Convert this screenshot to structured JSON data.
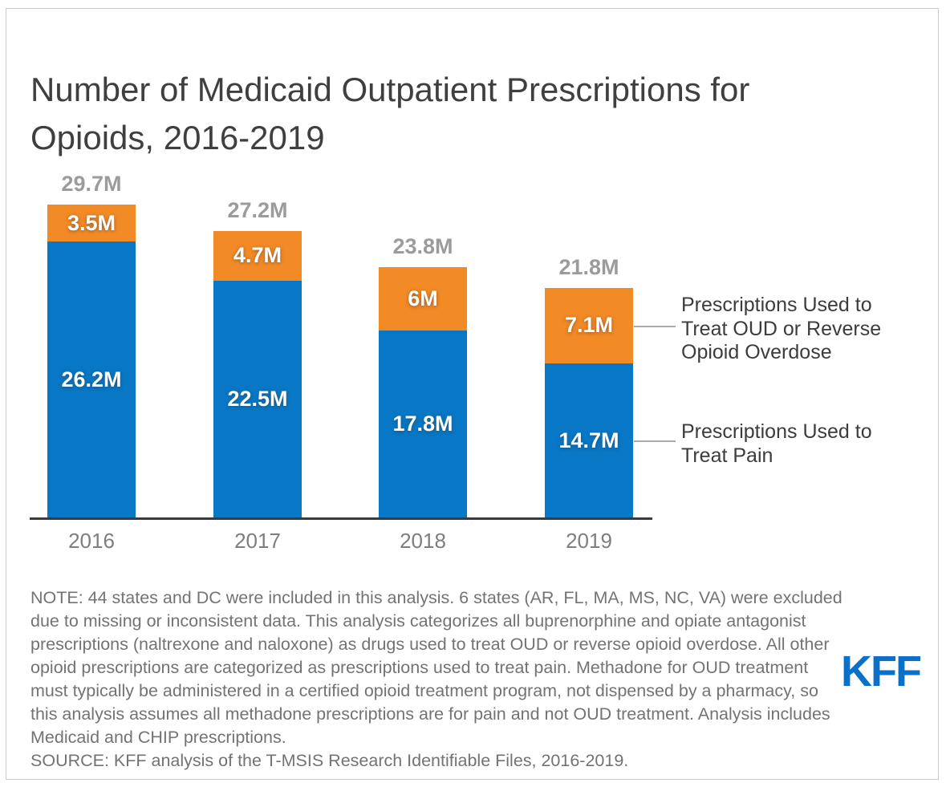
{
  "title": "Number of Medicaid Outpatient Prescriptions for Opioids, 2016-2019",
  "chart_data": {
    "type": "bar",
    "stacked": true,
    "categories": [
      "2016",
      "2017",
      "2018",
      "2019"
    ],
    "series": [
      {
        "name": "Prescriptions Used to Treat Pain",
        "color_key": "pain_blue",
        "values": [
          26.2,
          22.5,
          17.8,
          14.7
        ],
        "labels": [
          "26.2M",
          "22.5M",
          "17.8M",
          "14.7M"
        ]
      },
      {
        "name": "Prescriptions Used to Treat OUD or Reverse Opioid Overdose",
        "color_key": "oud_orange",
        "values": [
          3.5,
          4.7,
          6.0,
          7.1
        ],
        "labels": [
          "3.5M",
          "4.7M",
          "6M",
          "7.1M"
        ]
      }
    ],
    "totals": [
      29.7,
      27.2,
      23.8,
      21.8
    ],
    "total_labels": [
      "29.7M",
      "27.2M",
      "23.8M",
      "21.8M"
    ],
    "unit": "millions of prescriptions",
    "ylim": [
      0,
      30
    ],
    "grid": false,
    "legend_position": "right"
  },
  "legend": {
    "oud_label": "Prescriptions Used to Treat OUD or Reverse Opioid Overdose",
    "pain_label": "Prescriptions Used to Treat Pain"
  },
  "footer": {
    "note": "NOTE: 44 states and DC were included in this analysis. 6 states (AR, FL, MA, MS, NC, VA) were excluded due to missing or inconsistent data. This analysis categorizes all buprenorphine and opiate antagonist prescriptions (naltrexone and naloxone) as drugs used to treat OUD or reverse opioid overdose. All other opioid prescriptions are categorized as prescriptions used to treat pain. Methadone for OUD treatment must typically be administered in a certified opioid treatment program, not dispensed by a pharmacy, so this analysis assumes all methadone prescriptions are for pain and not OUD treatment. Analysis includes Medicaid and CHIP prescriptions.",
    "source": "SOURCE: KFF analysis of the T-MSIS Research Identifiable Files, 2016-2019.",
    "logo_text": "KFF"
  },
  "colors": {
    "pain_blue": "#0877C5",
    "oud_orange": "#F28A25",
    "logo_blue": "#0B70C8",
    "axis": "#3A3A3A",
    "total_label": "#9B9B9B",
    "year_label": "#7E7E7E",
    "legend_text": "#3C3C3C",
    "note_text": "#737373",
    "connector": "#ABABAB"
  }
}
